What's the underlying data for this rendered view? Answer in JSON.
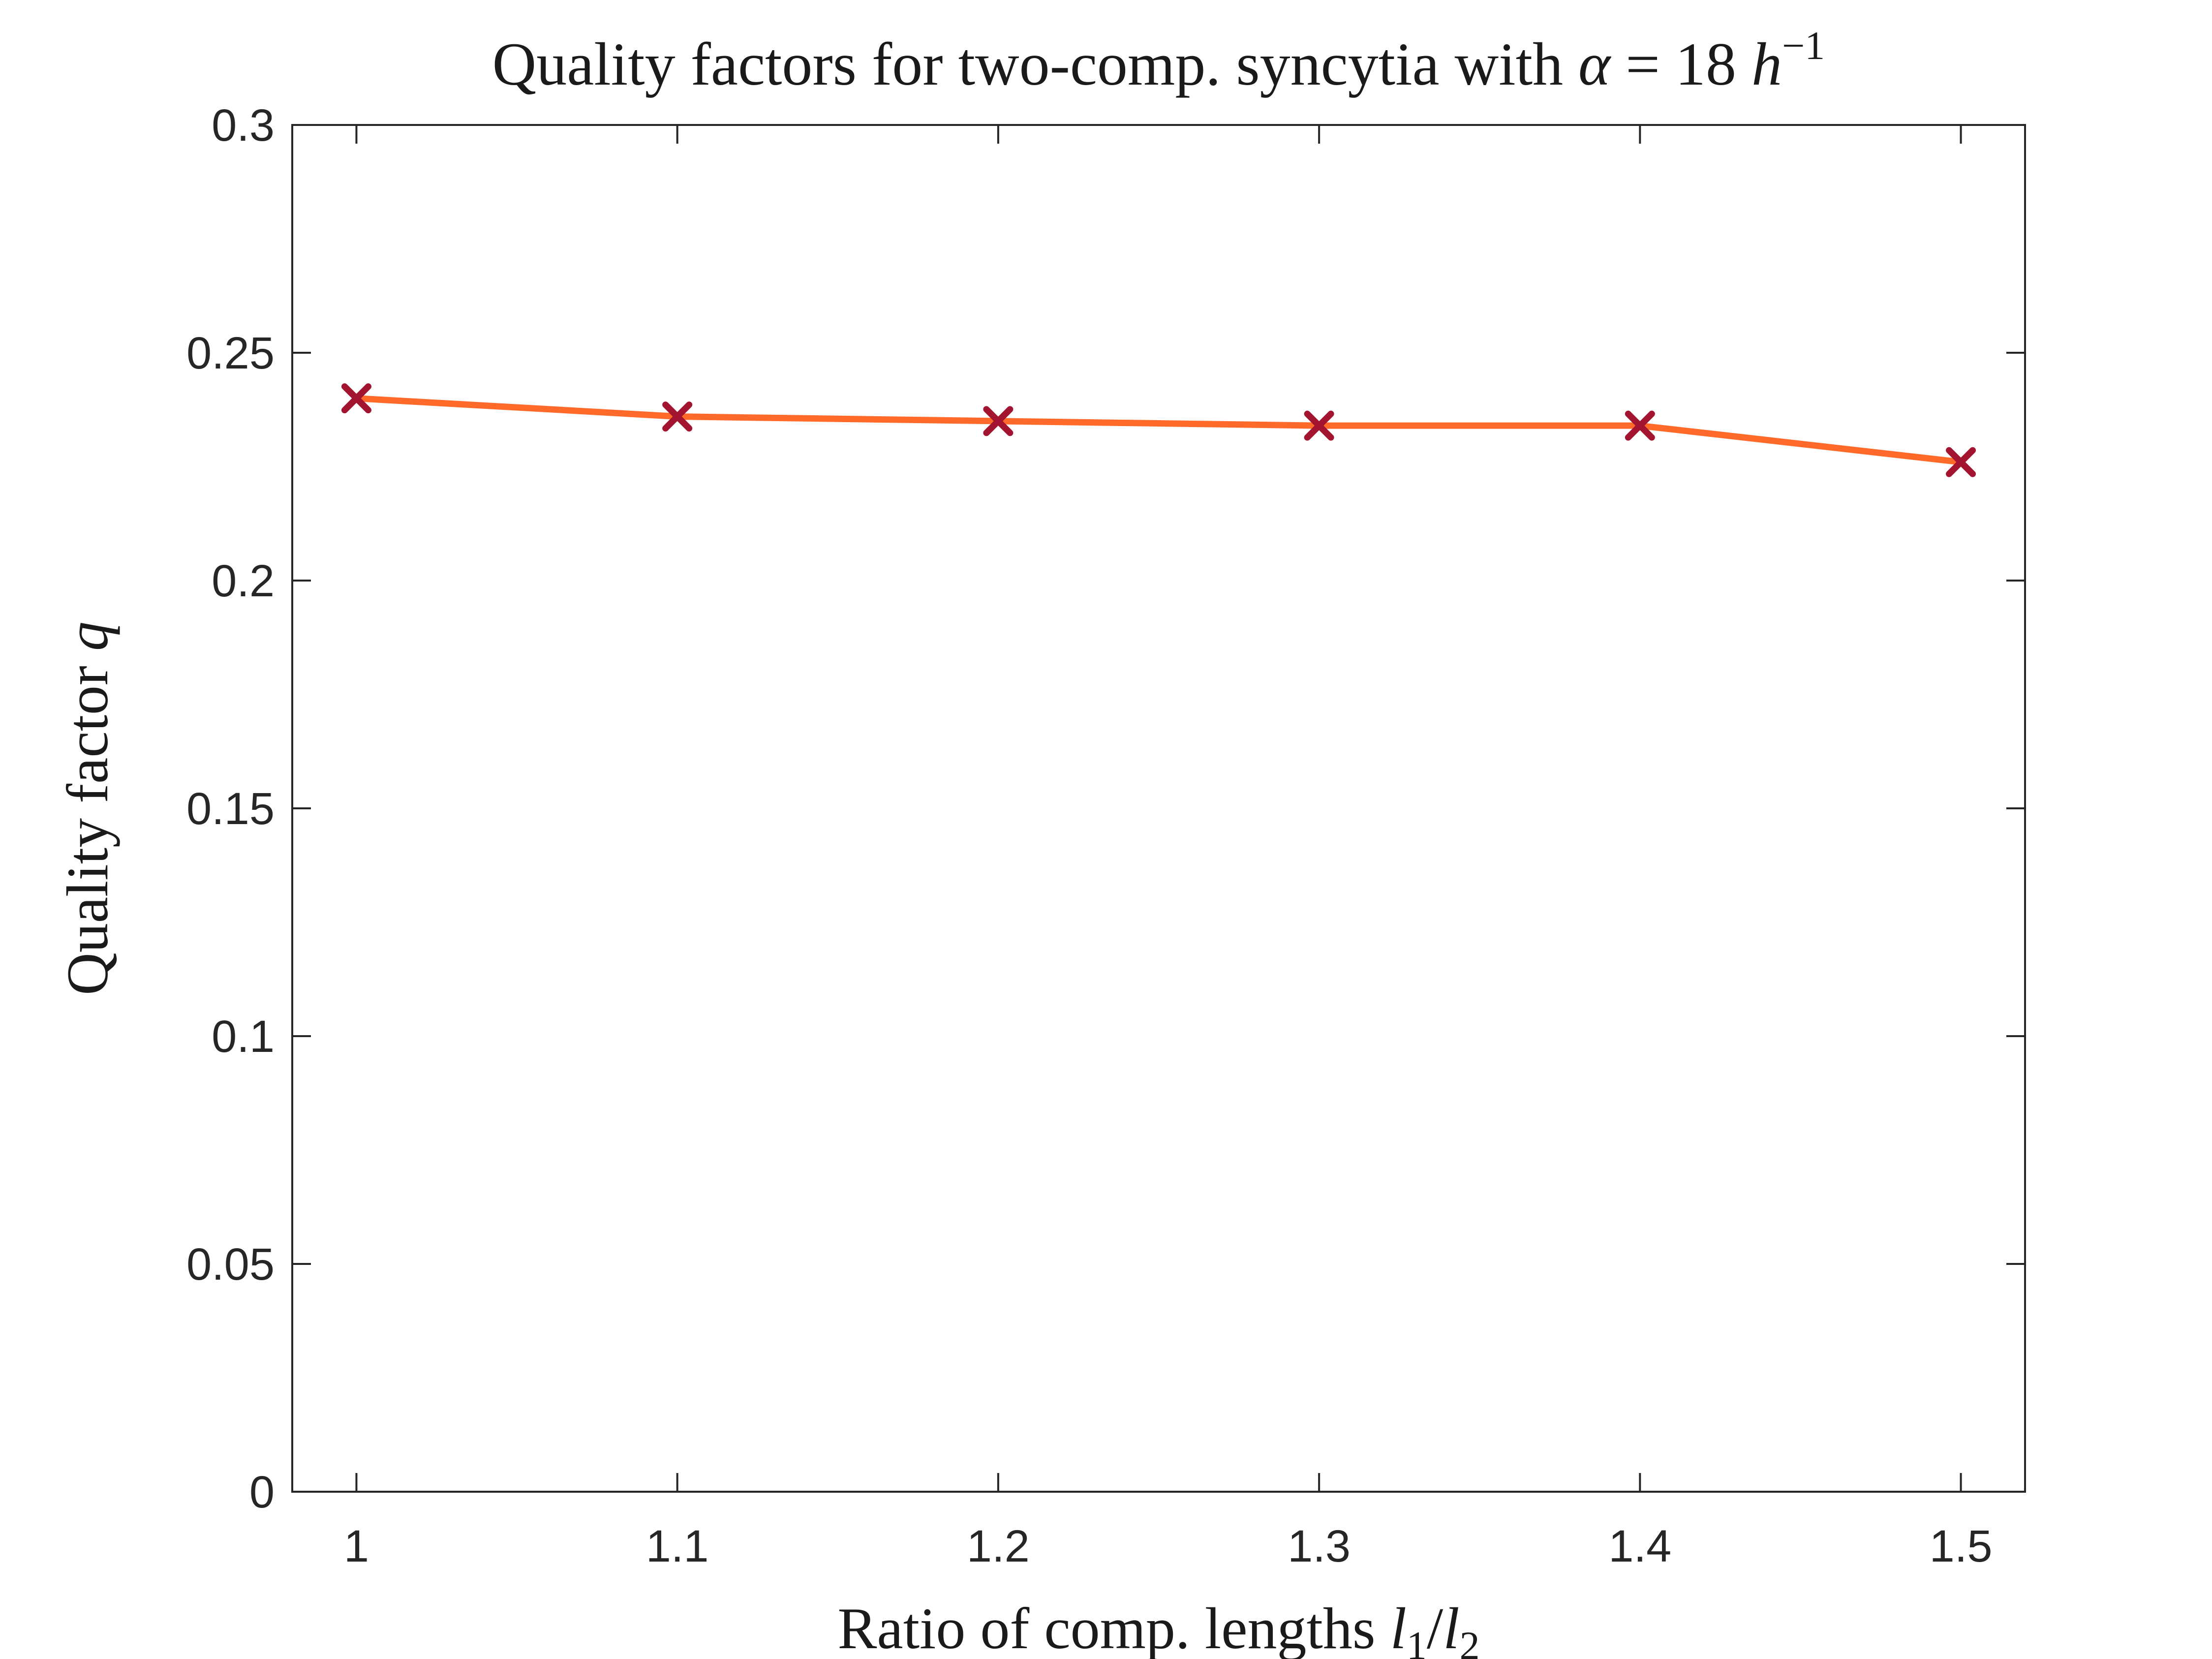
{
  "chart_data": {
    "type": "line",
    "title": {
      "prefix": "Quality factors for two-comp. syncytia with ",
      "alpha": "α",
      "equals": " = 18 ",
      "unit": "h",
      "unit_sup": "−1"
    },
    "xlabel": {
      "prefix": "Ratio of comp. lengths ",
      "l": "l",
      "sub1": "1",
      "slash": "/",
      "sub2": "2"
    },
    "ylabel": {
      "prefix": "Quality factor ",
      "q": "q"
    },
    "x": [
      1.0,
      1.1,
      1.2,
      1.3,
      1.4,
      1.5
    ],
    "series": [
      {
        "values": [
          0.24,
          0.236,
          0.235,
          0.234,
          0.234,
          0.226
        ]
      }
    ],
    "xlim": [
      0.98,
      1.52
    ],
    "ylim": [
      0,
      0.3
    ],
    "xticks": [
      "1",
      "1.1",
      "1.2",
      "1.3",
      "1.4",
      "1.5"
    ],
    "yticks": [
      "0",
      "0.05",
      "0.1",
      "0.15",
      "0.2",
      "0.25",
      "0.3"
    ],
    "colors": {
      "line": "#FF6A2B",
      "marker": "#A2142F",
      "axes": "#262626"
    },
    "marker": "x",
    "grid": false,
    "box": true
  }
}
